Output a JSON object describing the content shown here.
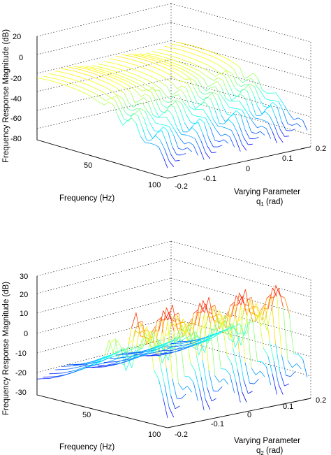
{
  "chart_data": [
    {
      "type": "surface",
      "zlabel": "Frequency Response Magnitude (dB)",
      "xlabel": "Frequency (Hz)",
      "ylabel_line1": "Varying Parameter",
      "ylabel_line2_main": "q",
      "ylabel_line2_sub": "1",
      "ylabel_line2_unit": " (rad)",
      "x_ticks": [
        "50",
        "100"
      ],
      "y_ticks": [
        "-0.2",
        "-0.1",
        "0",
        "0.1",
        "0.2"
      ],
      "z_ticks": [
        "20",
        "0",
        "-20",
        "-40",
        "-60",
        "-80"
      ],
      "xlim": [
        0,
        100
      ],
      "ylim": [
        -0.2,
        0.2
      ],
      "zlim": [
        -80,
        20
      ],
      "grid": true,
      "colormap": "jet",
      "surface_profile": {
        "frequency_hz": [
          0,
          10,
          20,
          30,
          40,
          50,
          55,
          60,
          65,
          70,
          75,
          80,
          85,
          90,
          95,
          100
        ],
        "magnitude_db": [
          -18,
          -17,
          -17,
          -18,
          -20,
          -25,
          -28,
          -30,
          -36,
          -33,
          -40,
          -48,
          -45,
          -55,
          -60,
          -65
        ]
      }
    },
    {
      "type": "surface",
      "zlabel": "Frequency Response Magnitude (dB)",
      "xlabel": "Frequency (Hz)",
      "ylabel_line1": "Varying Parameter",
      "ylabel_line2_main": "q",
      "ylabel_line2_sub": "2",
      "ylabel_line2_unit": " (rad)",
      "x_ticks": [
        "50",
        "100"
      ],
      "y_ticks": [
        "-0.2",
        "-0.1",
        "0",
        "0.1",
        "0.2"
      ],
      "z_ticks": [
        "30",
        "20",
        "10",
        "0",
        "-10",
        "-20",
        "-30"
      ],
      "xlim": [
        0,
        100
      ],
      "ylim": [
        -0.2,
        0.2
      ],
      "zlim": [
        -30,
        30
      ],
      "grid": true,
      "colormap": "jet",
      "surface_profile": {
        "frequency_hz": [
          0,
          10,
          20,
          30,
          40,
          50,
          55,
          60,
          65,
          70,
          75,
          80,
          85,
          90,
          95,
          100
        ],
        "magnitude_db": [
          -20,
          -18,
          -15,
          -11,
          -7,
          -2,
          2,
          -6,
          10,
          4,
          20,
          12,
          24,
          -8,
          -15,
          -20
        ]
      }
    }
  ]
}
